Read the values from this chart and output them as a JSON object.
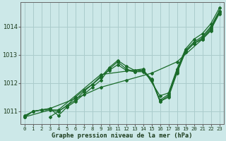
{
  "xlabel": "Graphe pression niveau de la mer (hPa)",
  "background_color": "#cce8e8",
  "grid_color": "#aacccc",
  "line_color": "#1a6b2a",
  "xlim_min": -0.5,
  "xlim_max": 23.5,
  "ylim_min": 1010.55,
  "ylim_max": 1014.85,
  "yticks": [
    1011,
    1012,
    1013,
    1014
  ],
  "xticks": [
    0,
    1,
    2,
    3,
    4,
    5,
    6,
    7,
    8,
    9,
    10,
    11,
    12,
    13,
    14,
    15,
    16,
    17,
    18,
    19,
    20,
    21,
    22,
    23
  ],
  "lines": [
    {
      "x": [
        0,
        1,
        3,
        6,
        9,
        12,
        15,
        18,
        21,
        22,
        23
      ],
      "y": [
        1010.8,
        1011.0,
        1011.1,
        1011.45,
        1011.85,
        1012.1,
        1012.35,
        1012.75,
        1013.55,
        1013.85,
        1014.55
      ]
    },
    {
      "x": [
        0,
        1,
        2,
        3,
        4,
        5,
        6,
        7,
        8,
        9,
        10,
        11,
        12,
        13,
        14,
        15,
        16,
        17,
        18,
        19,
        20,
        21,
        22,
        23
      ],
      "y": [
        1010.85,
        1011.0,
        1011.05,
        1011.05,
        1011.0,
        1011.2,
        1011.4,
        1011.7,
        1011.95,
        1012.2,
        1012.55,
        1012.8,
        1012.6,
        1012.45,
        1012.45,
        1012.15,
        1011.35,
        1011.55,
        1012.45,
        1013.15,
        1013.45,
        1013.65,
        1014.0,
        1014.55
      ]
    },
    {
      "x": [
        0,
        1,
        2,
        3,
        4,
        5,
        6,
        7,
        8,
        9,
        10,
        11,
        12,
        13,
        14,
        15,
        16,
        17,
        18,
        19,
        20,
        21,
        22,
        23
      ],
      "y": [
        1010.8,
        1011.0,
        1011.05,
        1011.1,
        1010.85,
        1011.15,
        1011.35,
        1011.6,
        1011.85,
        1012.1,
        1012.5,
        1012.75,
        1012.5,
        1012.4,
        1012.4,
        1012.1,
        1011.4,
        1011.6,
        1012.4,
        1013.1,
        1013.4,
        1013.6,
        1013.95,
        1014.5
      ]
    },
    {
      "x": [
        3,
        4,
        5,
        6,
        7,
        8,
        9,
        10,
        11,
        12,
        13,
        14,
        15,
        16,
        17,
        18,
        19,
        20,
        21,
        22,
        23
      ],
      "y": [
        1010.8,
        1011.0,
        1011.2,
        1011.5,
        1011.75,
        1011.95,
        1012.25,
        1012.45,
        1012.65,
        1012.45,
        1012.4,
        1012.45,
        1012.1,
        1011.35,
        1011.5,
        1012.35,
        1013.1,
        1013.4,
        1013.55,
        1013.9,
        1014.45
      ]
    },
    {
      "x": [
        0,
        3,
        4,
        9,
        14,
        16,
        17,
        18,
        19,
        20,
        21,
        22,
        23
      ],
      "y": [
        1010.8,
        1011.05,
        1011.05,
        1012.3,
        1012.5,
        1011.55,
        1011.65,
        1012.5,
        1013.2,
        1013.55,
        1013.75,
        1014.1,
        1014.65
      ]
    }
  ]
}
